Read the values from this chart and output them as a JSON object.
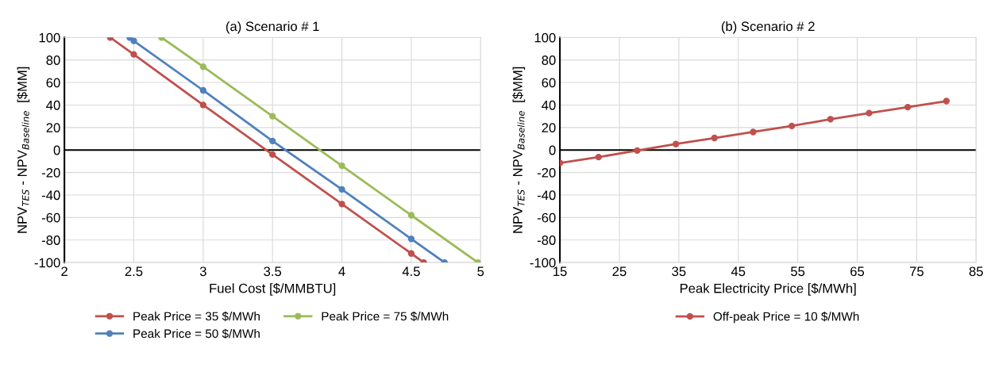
{
  "chart_data": [
    {
      "type": "line",
      "title": "(a) Scenario # 1",
      "xlabel": "Fuel Cost [$/MMBTU]",
      "ylabel": "NPV$_{TES}$ - NPV$_{Baseline}$  [$MM]",
      "xlim": [
        2,
        5
      ],
      "xticks": [
        2,
        2.5,
        3,
        3.5,
        4,
        4.5,
        5
      ],
      "ylim": [
        -100,
        100
      ],
      "yticks": [
        -100,
        -80,
        -60,
        -40,
        -20,
        0,
        20,
        40,
        60,
        80,
        100
      ],
      "grid": true,
      "legend": "bottom",
      "marker": "circle",
      "line_style": "solid",
      "ref_lines": [
        {
          "axis": "y",
          "value": 0,
          "color": "#000000"
        }
      ],
      "series": [
        {
          "name": "Peak Price = 35 $/MWh",
          "color": "#c0504d",
          "x": [
            2.33,
            2.5,
            3,
            3.5,
            4,
            4.5,
            4.59
          ],
          "values": [
            100,
            85,
            40,
            -4,
            -48,
            -92,
            -100
          ]
        },
        {
          "name": "Peak Price = 50 $/MWh",
          "color": "#4f81bd",
          "x": [
            2.47,
            2.5,
            3,
            3.5,
            4,
            4.5,
            4.74
          ],
          "values": [
            100,
            97,
            53,
            8,
            -35,
            -79,
            -100
          ]
        },
        {
          "name": "Peak Price = 75 $/MWh",
          "color": "#9bbb59",
          "x": [
            2.7,
            3,
            3.5,
            4,
            4.5,
            4.98
          ],
          "values": [
            100,
            74,
            30,
            -14,
            -58,
            -100
          ]
        }
      ]
    },
    {
      "type": "line",
      "title": "(b) Scenario # 2",
      "xlabel": "Peak Electricity Price [$/MWh]",
      "ylabel": "NPV$_{TES}$ - NPV$_{Baseline}$  [$MM]",
      "xlim": [
        15,
        85
      ],
      "xticks": [
        15,
        25,
        35,
        45,
        55,
        65,
        75,
        85
      ],
      "ylim": [
        -100,
        100
      ],
      "yticks": [
        -100,
        -80,
        -60,
        -40,
        -20,
        0,
        20,
        40,
        60,
        80,
        100
      ],
      "grid": true,
      "legend": "bottom",
      "marker": "circle",
      "line_style": "solid",
      "ref_lines": [
        {
          "axis": "y",
          "value": 0,
          "color": "#000000"
        }
      ],
      "series": [
        {
          "name": "Off-peak Price = 10 $/MWh",
          "color": "#c0504d",
          "x": [
            15,
            21.5,
            28,
            34.5,
            41,
            47.5,
            54,
            60.5,
            67,
            73.5,
            80
          ],
          "values": [
            -11.5,
            -6.3,
            -0.5,
            5.3,
            10.7,
            16,
            21.4,
            27.4,
            32.8,
            38.1,
            43.5
          ]
        }
      ]
    }
  ]
}
